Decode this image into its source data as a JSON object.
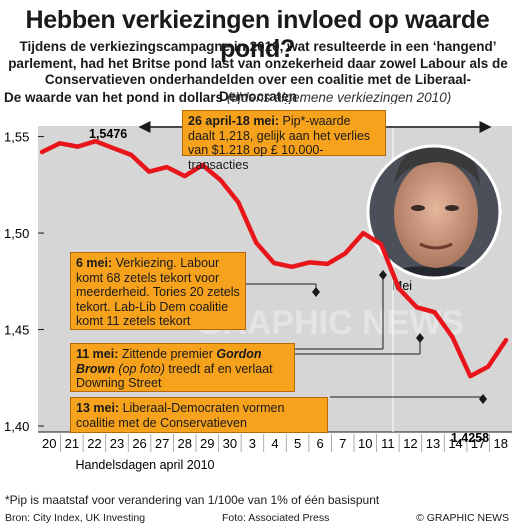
{
  "headline": "Hebben verkiezingen invloed op waarde pond?",
  "intro": "Tijdens de verkiezingscampagne in 2010, wat resulteerde in een ‘hangend’ parlement, had het Britse pond last van onzekerheid daar zowel Labour als de Conservatieven onderhandelden over een coalitie met de Liberaal-Democraten",
  "subtitle": {
    "main": "De waarde van het pond in dollars",
    "paren": "(tijdens algemene verkiezingen 2010)"
  },
  "annotations": {
    "a1": {
      "date": "26 april-18 mei:",
      "text": " Pip*-waarde daalt 1,218, gelijk aan het verlies van $1.218 op £ 10.000-transacties"
    },
    "a2": {
      "date": "6 mei:",
      "text": " Verkiezing. Labour komt 68 zetels tekort voor meerderheid. Tories 20 zetels tekort. Lab-Lib Dem coalitie komt 11 zetels tekort"
    },
    "a3": {
      "date": "11 mei:",
      "text_1": " Zittende premier ",
      "name": "Gordon Brown",
      "text_2": " (op foto)",
      "text_3": " treedt af en verlaat Downing Street"
    },
    "a4": {
      "date": "13 mei:",
      "text": " Liberaal-Democraten vormen coalitie met de Conservatieven"
    }
  },
  "footnote": "*Pip is maatstaf voor verandering van 1/100e van 1% of één basispunt",
  "credits": {
    "source": "Bron: City Index, UK Investing",
    "photo": "Foto: Associated Press",
    "brand": "© GRAPHIC NEWS"
  },
  "watermark": "GRAPHIC NEWS",
  "colors": {
    "line": "#e8161b",
    "annotation": "#f6a21c",
    "plot_bg": "#d6d6d6",
    "arrow": "#1a1a1a"
  },
  "chart_data": {
    "type": "line",
    "title": "De waarde van het pond in dollars",
    "subtitle": "(tijdens algemene verkiezingen 2010)",
    "x_tick_labels": [
      "20",
      "21",
      "22",
      "23",
      "26",
      "27",
      "28",
      "29",
      "30",
      "3",
      "4",
      "5",
      "6",
      "7",
      "10",
      "11",
      "12",
      "13",
      "14",
      "17",
      "18"
    ],
    "x_group_labels": [
      "Handelsdagen april 2010",
      "Mei"
    ],
    "y_tick_labels": [
      "1,40",
      "1,45",
      "1,50",
      "1,55"
    ],
    "ylim": [
      1.4,
      1.57
    ],
    "grid": false,
    "series": [
      {
        "values": [
          1.542,
          1.5465,
          1.5448,
          1.5476,
          1.544,
          1.5405,
          1.5318,
          1.5342,
          1.5295,
          1.5352,
          1.5275,
          1.516,
          1.495,
          1.4845,
          1.4825,
          1.4848,
          1.484,
          1.4895,
          1.5,
          1.4942,
          1.4712,
          1.4615,
          1.459,
          1.446,
          1.4258,
          1.4308,
          1.4445
        ]
      }
    ],
    "point_labels": [
      {
        "index": 3,
        "label": "1,5476"
      },
      {
        "index": 24,
        "label": "1,4258"
      }
    ]
  }
}
